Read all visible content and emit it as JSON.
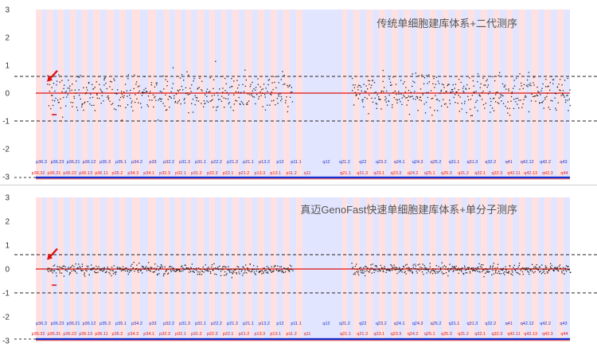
{
  "colors": {
    "band_a": "#ffe1e1",
    "band_b": "#e2e5ff",
    "zero_line": "#e01010",
    "points": "#222222",
    "baseline": "#1030d0",
    "baseline_red": "#e02020",
    "labels_upper": "#2030c0",
    "labels_lower": "#e02020",
    "arrow": "#e01010"
  },
  "arm_labels_upper": [
    "p36.3",
    "p36.23",
    "p36.21",
    "p36.12",
    "p35.3",
    "p35.1",
    "p34.2",
    "p33",
    "p32.2",
    "p31.3",
    "p31.1",
    "p22.2",
    "p21.3",
    "p21.1",
    "p13.2",
    "p12",
    "p11.1",
    "q12",
    "q21.2",
    "q22",
    "q23.2",
    "q24.1",
    "q24.3",
    "q25.2",
    "q31.1",
    "q31.3",
    "q32.2",
    "q41",
    "q42.12",
    "q42.2",
    "q43"
  ],
  "arm_labels_lower": [
    "p36.32",
    "p36.31",
    "p36.22",
    "p36.13",
    "p36.11",
    "p35.2",
    "p34.3",
    "p34.1",
    "p32.3",
    "p32.1",
    "p31.2",
    "p22.3",
    "p22.1",
    "p21.2",
    "p13.3",
    "p13.1",
    "p11.2",
    "q11",
    "q21.1",
    "q21.3",
    "q23.1",
    "q23.3",
    "q24.2",
    "q25.1",
    "q25.3",
    "q31.2",
    "q32.1",
    "q32.3",
    "q42.11",
    "q42.13",
    "q42.3",
    "q44"
  ],
  "chart_data": [
    {
      "type": "scatter",
      "title": "传统单细胞建库体系+二代测序",
      "yticks": [
        3,
        2,
        1,
        0,
        -1,
        -2,
        -3
      ],
      "ylim": [
        -3,
        3
      ],
      "reference_lines": [
        0.6,
        0,
        -1
      ],
      "marker_points": [
        {
          "x": 0.03,
          "y": -0.75
        }
      ],
      "series": [
        {
          "x_range": [
            0.02,
            0.48
          ],
          "center": 0.0,
          "spread": 0.32,
          "count": 420
        },
        {
          "x_range": [
            0.59,
            1.0
          ],
          "center": 0.0,
          "spread": 0.33,
          "count": 400
        }
      ]
    },
    {
      "type": "scatter",
      "title": "真迈GenoFast快速单细胞建库体系+单分子测序",
      "yticks": [
        3,
        2,
        1,
        0,
        -1,
        -2,
        -3
      ],
      "ylim": [
        -3,
        3
      ],
      "reference_lines": [
        0.6,
        0,
        -1
      ],
      "marker_points": [
        {
          "x": 0.03,
          "y": -0.65
        }
      ],
      "series": [
        {
          "x_range": [
            0.02,
            0.48
          ],
          "center": 0.0,
          "spread": 0.11,
          "count": 420
        },
        {
          "x_range": [
            0.59,
            1.0
          ],
          "center": 0.0,
          "spread": 0.11,
          "count": 400
        }
      ]
    }
  ]
}
